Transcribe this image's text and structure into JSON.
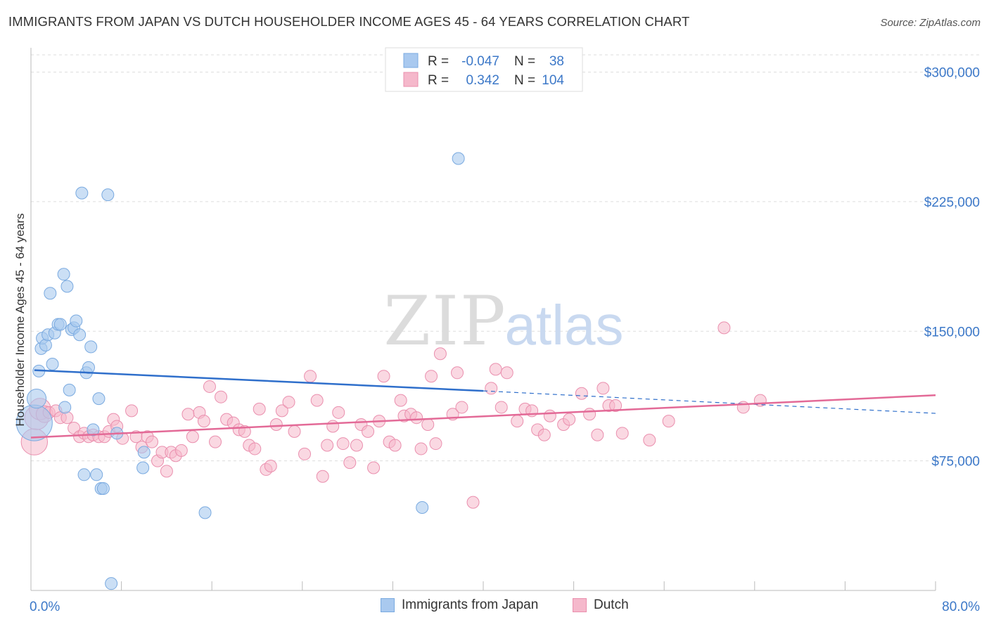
{
  "header": {
    "title": "IMMIGRANTS FROM JAPAN VS DUTCH HOUSEHOLDER INCOME AGES 45 - 64 YEARS CORRELATION CHART",
    "source": "Source: ZipAtlas.com"
  },
  "watermark": {
    "zip": "ZIP",
    "atlas": "atlas"
  },
  "colors": {
    "blue_fill": "#a9c9ef",
    "blue_stroke": "#7aaae0",
    "blue_line": "#2f6fcb",
    "pink_fill": "#f5b8cb",
    "pink_stroke": "#ea8fae",
    "pink_line": "#e36a97",
    "axis_value": "#3c78c8",
    "grid": "#dddddd"
  },
  "legend_top": {
    "rows": [
      {
        "r_label": "R =",
        "r_value": "-0.047",
        "n_label": "N =",
        "n_value": "38"
      },
      {
        "r_label": "R =",
        "r_value": "0.342",
        "n_label": "N =",
        "n_value": "104"
      }
    ]
  },
  "legend_bottom": {
    "items": [
      {
        "label": "Immigrants from Japan"
      },
      {
        "label": "Dutch"
      }
    ]
  },
  "chart_data": {
    "type": "scatter",
    "title": "IMMIGRANTS FROM JAPAN VS DUTCH HOUSEHOLDER INCOME AGES 45 - 64 YEARS CORRELATION CHART",
    "xlabel": "",
    "ylabel": "Householder Income Ages 45 - 64 years",
    "xlim": [
      0,
      80
    ],
    "ylim": [
      0,
      310000
    ],
    "x_tick_labels": [
      "0.0%",
      "80.0%"
    ],
    "y_ticks": [
      75000,
      150000,
      225000,
      300000
    ],
    "y_tick_labels": [
      "$75,000",
      "$150,000",
      "$225,000",
      "$300,000"
    ],
    "grid": true,
    "series": [
      {
        "name": "Immigrants from Japan",
        "r": -0.047,
        "n": 38,
        "trend": {
          "x_solid": [
            0.3,
            40
          ],
          "y_solid": [
            127500,
            115500
          ],
          "x_dashed": [
            40,
            80
          ],
          "y_dashed": [
            115500,
            102500
          ]
        },
        "points": [
          [
            0.3,
            97000,
            3
          ],
          [
            0.5,
            111000,
            1.6
          ],
          [
            0.7,
            127000,
            1
          ],
          [
            0.9,
            140000,
            1
          ],
          [
            1.0,
            146000,
            1
          ],
          [
            1.3,
            142000,
            1
          ],
          [
            1.5,
            148000,
            1
          ],
          [
            1.7,
            172000,
            1
          ],
          [
            1.9,
            131000,
            1
          ],
          [
            2.1,
            149000,
            1
          ],
          [
            2.4,
            154000,
            1
          ],
          [
            2.6,
            154000,
            1
          ],
          [
            2.9,
            183000,
            1
          ],
          [
            3.0,
            106000,
            1
          ],
          [
            3.2,
            176000,
            1
          ],
          [
            3.4,
            116000,
            1
          ],
          [
            3.6,
            151000,
            1
          ],
          [
            3.8,
            152000,
            1
          ],
          [
            4.0,
            156000,
            1
          ],
          [
            4.3,
            148000,
            1
          ],
          [
            4.5,
            230000,
            1
          ],
          [
            4.7,
            67000,
            1
          ],
          [
            4.9,
            126000,
            1
          ],
          [
            5.1,
            129000,
            1
          ],
          [
            5.3,
            141000,
            1
          ],
          [
            5.5,
            93000,
            1
          ],
          [
            5.8,
            67000,
            1
          ],
          [
            6.0,
            111000,
            1
          ],
          [
            6.2,
            59000,
            1
          ],
          [
            6.4,
            59000,
            1
          ],
          [
            6.8,
            229000,
            1
          ],
          [
            7.1,
            4000,
            1
          ],
          [
            7.6,
            91000,
            1
          ],
          [
            9.9,
            71000,
            1
          ],
          [
            10.0,
            80000,
            1
          ],
          [
            15.4,
            45000,
            1
          ],
          [
            34.6,
            48000,
            1
          ],
          [
            37.8,
            250000,
            1
          ]
        ]
      },
      {
        "name": "Dutch",
        "r": 0.342,
        "n": 104,
        "trend": {
          "x": [
            0,
            80
          ],
          "y": [
            88500,
            113000
          ]
        },
        "points": [
          [
            0.3,
            86000,
            2.2
          ],
          [
            0.5,
            100000,
            2
          ],
          [
            0.8,
            105000,
            1.8
          ],
          [
            1.2,
            102000,
            1.4
          ],
          [
            1.6,
            103000,
            1
          ],
          [
            2.2,
            104000,
            1
          ],
          [
            2.6,
            100000,
            1
          ],
          [
            3.2,
            100000,
            1
          ],
          [
            3.8,
            94000,
            1
          ],
          [
            4.3,
            89000,
            1
          ],
          [
            4.7,
            91000,
            1
          ],
          [
            5.1,
            89000,
            1
          ],
          [
            5.5,
            90000,
            1
          ],
          [
            6.0,
            89000,
            1
          ],
          [
            6.5,
            89000,
            1
          ],
          [
            6.9,
            92000,
            1
          ],
          [
            7.3,
            99000,
            1
          ],
          [
            7.6,
            95000,
            1
          ],
          [
            8.1,
            88000,
            1
          ],
          [
            8.9,
            104000,
            1
          ],
          [
            9.3,
            89000,
            1
          ],
          [
            9.8,
            83000,
            1
          ],
          [
            10.3,
            89000,
            1
          ],
          [
            10.7,
            86000,
            1
          ],
          [
            11.2,
            75000,
            1
          ],
          [
            11.6,
            80000,
            1
          ],
          [
            12.0,
            69000,
            1
          ],
          [
            12.4,
            80000,
            1
          ],
          [
            12.8,
            78000,
            1
          ],
          [
            13.3,
            81000,
            1
          ],
          [
            13.9,
            102000,
            1
          ],
          [
            14.3,
            89000,
            1
          ],
          [
            14.9,
            103000,
            1
          ],
          [
            15.3,
            98000,
            1
          ],
          [
            15.8,
            118000,
            1
          ],
          [
            16.3,
            86000,
            1
          ],
          [
            16.8,
            112000,
            1
          ],
          [
            17.3,
            99000,
            1
          ],
          [
            17.9,
            97000,
            1
          ],
          [
            18.4,
            93000,
            1
          ],
          [
            18.9,
            92000,
            1
          ],
          [
            19.3,
            84000,
            1
          ],
          [
            19.8,
            82000,
            1
          ],
          [
            20.2,
            105000,
            1
          ],
          [
            20.8,
            70000,
            1
          ],
          [
            21.2,
            72000,
            1
          ],
          [
            21.7,
            96000,
            1
          ],
          [
            22.2,
            104000,
            1
          ],
          [
            22.8,
            109000,
            1
          ],
          [
            23.3,
            92000,
            1
          ],
          [
            24.2,
            79000,
            1
          ],
          [
            24.7,
            124000,
            1
          ],
          [
            25.3,
            110000,
            1
          ],
          [
            25.8,
            66000,
            1
          ],
          [
            26.2,
            84000,
            1
          ],
          [
            26.7,
            95000,
            1
          ],
          [
            27.2,
            103000,
            1
          ],
          [
            27.6,
            85000,
            1
          ],
          [
            28.2,
            74000,
            1
          ],
          [
            28.8,
            84000,
            1
          ],
          [
            29.2,
            96000,
            1
          ],
          [
            29.8,
            92000,
            1
          ],
          [
            30.3,
            71000,
            1
          ],
          [
            30.8,
            98000,
            1
          ],
          [
            31.2,
            124000,
            1
          ],
          [
            31.7,
            86000,
            1
          ],
          [
            32.2,
            84000,
            1
          ],
          [
            32.7,
            110000,
            1
          ],
          [
            33.0,
            101000,
            1
          ],
          [
            33.6,
            102000,
            1
          ],
          [
            34.1,
            100000,
            1
          ],
          [
            34.5,
            82000,
            1
          ],
          [
            35.1,
            96000,
            1
          ],
          [
            35.4,
            124000,
            1
          ],
          [
            35.8,
            85000,
            1
          ],
          [
            36.2,
            137000,
            1
          ],
          [
            37.3,
            102000,
            1
          ],
          [
            37.7,
            126000,
            1
          ],
          [
            38.1,
            106000,
            1
          ],
          [
            39.1,
            51000,
            1
          ],
          [
            40.7,
            117000,
            1
          ],
          [
            41.1,
            128000,
            1
          ],
          [
            41.6,
            106000,
            1
          ],
          [
            42.1,
            126000,
            1
          ],
          [
            43.0,
            98000,
            1
          ],
          [
            43.7,
            105000,
            1
          ],
          [
            44.3,
            104000,
            1
          ],
          [
            44.8,
            93000,
            1
          ],
          [
            45.4,
            90000,
            1
          ],
          [
            45.9,
            101000,
            1
          ],
          [
            47.1,
            96000,
            1
          ],
          [
            47.6,
            99000,
            1
          ],
          [
            48.7,
            114000,
            1
          ],
          [
            49.4,
            102000,
            1
          ],
          [
            50.1,
            90000,
            1
          ],
          [
            50.6,
            117000,
            1
          ],
          [
            51.1,
            107000,
            1
          ],
          [
            51.7,
            107000,
            1
          ],
          [
            52.3,
            91000,
            1
          ],
          [
            54.7,
            87000,
            1
          ],
          [
            56.4,
            98000,
            1
          ],
          [
            61.3,
            152000,
            1
          ],
          [
            63.0,
            106000,
            1
          ],
          [
            64.5,
            110000,
            1
          ]
        ]
      }
    ]
  }
}
